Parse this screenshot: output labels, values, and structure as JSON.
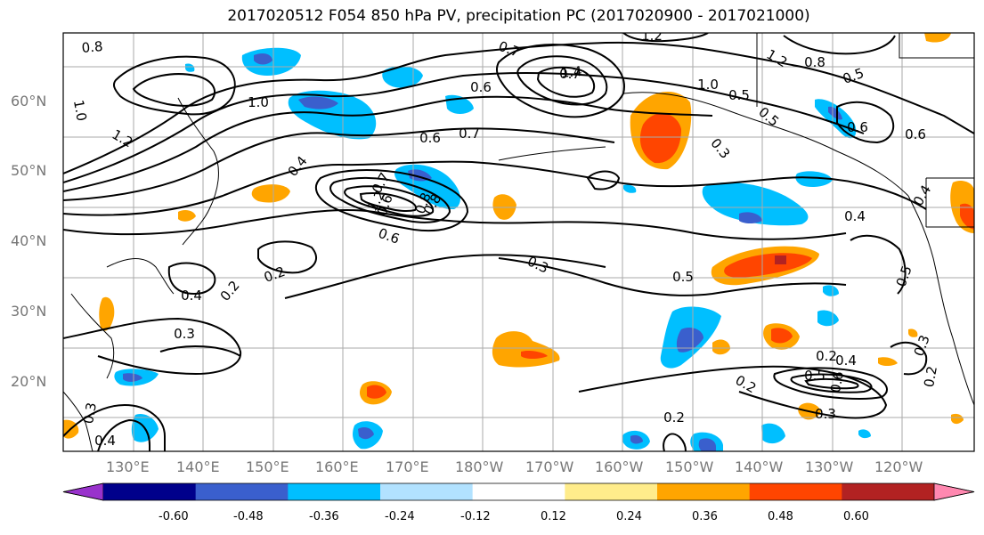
{
  "title": "2017020512 F054 850 hPa PV, precipitation PC (2017020900 - 2017021000)",
  "lat_labels": [
    "60°N",
    "50°N",
    "40°N",
    "30°N",
    "20°N"
  ],
  "lon_labels": [
    "130°E",
    "140°E",
    "150°E",
    "160°E",
    "170°E",
    "180°W",
    "170°W",
    "160°W",
    "150°W",
    "140°W",
    "130°W",
    "120°W"
  ],
  "colorbar": {
    "colors": [
      "#9932cc",
      "#00008b",
      "#3a5fcd",
      "#00bfff",
      "#b2e2ff",
      "#ffffff",
      "#ffec8b",
      "#ffa500",
      "#ff4500",
      "#b22222",
      "#ff88b0"
    ],
    "tick_labels": [
      "-0.60",
      "-0.48",
      "-0.36",
      "-0.24",
      "-0.12",
      "0.12",
      "0.24",
      "0.36",
      "0.48",
      "0.60"
    ]
  },
  "contour_labels": [
    "0.8",
    "1.2",
    "0.7",
    "1.0",
    "0.6",
    "0.7",
    "1.4",
    "1.0",
    "0.5",
    "0.5",
    "1.2",
    "0.8",
    "0.5",
    "1.0",
    "1.2",
    "0.6",
    "0.6",
    "0.7",
    "0.3",
    "0.6",
    "0.8",
    "0.4",
    "0.7",
    "0.6",
    "1.2",
    "0.8",
    "0.6",
    "0.4",
    "0.2",
    "0.2",
    "0.4",
    "0.3",
    "0.3",
    "0.5",
    "0.4",
    "0.5",
    "0.3",
    "0.2",
    "0.5",
    "0.4",
    "0.6",
    "0.2",
    "0.2",
    "0.3",
    "0.3",
    "0.4",
    "0.2"
  ]
}
